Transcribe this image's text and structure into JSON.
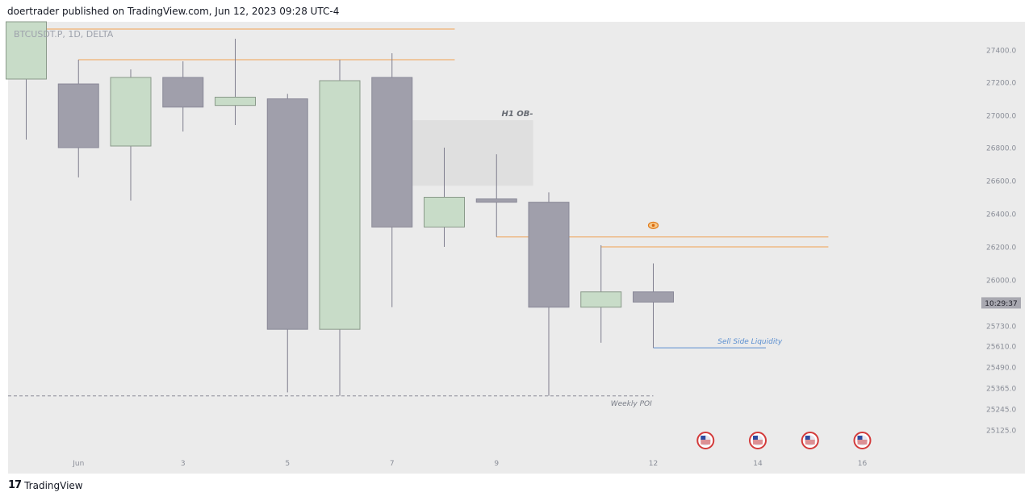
{
  "header": {
    "published_by": "doertrader published on TradingView.com, Jun 12, 2023 09:28 UTC-4"
  },
  "footer": {
    "brand": "TradingView",
    "logo_icon": "tradingview-logo-icon"
  },
  "chart_data": {
    "type": "candlestick",
    "title": "BTCUSDT.P, 1D, DELTA",
    "ylim": [
      25000,
      27700
    ],
    "x_tick_labels": [
      "Jun",
      "3",
      "5",
      "7",
      "9",
      "12",
      "14",
      "16"
    ],
    "y_tick_labels": [
      "27400.0",
      "27200.0",
      "27000.0",
      "26800.0",
      "26600.0",
      "26400.0",
      "26200.0",
      "26000.0",
      "25730.0",
      "25610.0",
      "25490.0",
      "25365.0",
      "25245.0",
      "25125.0"
    ],
    "y_ticks": [
      27400,
      27200,
      27000,
      26800,
      26600,
      26400,
      26200,
      26000,
      25730,
      25610,
      25490,
      25365,
      25245,
      25125
    ],
    "colors": {
      "plot_background": "#ebebeb",
      "up_fill": "#c8dcc8",
      "down_fill": "#a09fab",
      "wick": "#7f7e8e",
      "candle_border": "#7a7a7a",
      "resistance_line": "#f0a050",
      "sell_line": "#5b8fd0",
      "poi_line": "#8a8a96",
      "ob_zone": "#dedede",
      "current_price_badge": "#a8a8b0"
    },
    "candles": [
      {
        "date": "May 31",
        "open": 27220,
        "high": 27700,
        "low": 26850,
        "close": 27620
      },
      {
        "date": "Jun 1",
        "open": 27190,
        "high": 27340,
        "low": 26620,
        "close": 26800
      },
      {
        "date": "Jun 2",
        "open": 26810,
        "high": 27280,
        "low": 26480,
        "close": 27230
      },
      {
        "date": "Jun 3",
        "open": 27230,
        "high": 27330,
        "low": 26900,
        "close": 27050
      },
      {
        "date": "Jun 4",
        "open": 27060,
        "high": 27470,
        "low": 26940,
        "close": 27110
      },
      {
        "date": "Jun 5",
        "open": 27100,
        "high": 27130,
        "low": 25340,
        "close": 25710
      },
      {
        "date": "Jun 6",
        "open": 25710,
        "high": 27340,
        "low": 25320,
        "close": 27210
      },
      {
        "date": "Jun 7",
        "open": 27230,
        "high": 27380,
        "low": 25840,
        "close": 26320
      },
      {
        "date": "Jun 8",
        "open": 26320,
        "high": 26800,
        "low": 26200,
        "close": 26500
      },
      {
        "date": "Jun 9",
        "open": 26490,
        "high": 26760,
        "low": 26260,
        "close": 26470
      },
      {
        "date": "Jun 10",
        "open": 26470,
        "high": 26530,
        "low": 25320,
        "close": 25840
      },
      {
        "date": "Jun 11",
        "open": 25840,
        "high": 26210,
        "low": 25630,
        "close": 25930
      },
      {
        "date": "Jun 12",
        "open": 25930,
        "high": 26100,
        "low": 25600,
        "close": 25870
      }
    ],
    "current_time_label": "10:29:37",
    "current_price": 25870,
    "annotations": {
      "h1_ob_label": "H1 OB-",
      "h1_ob_zone": {
        "from_date": "Jun 7",
        "to_date": "Jun 10",
        "top": 26970,
        "bottom": 26570
      },
      "sell_side_liquidity_label": "Sell Side Liquidity",
      "sell_side_liquidity_price": 25600,
      "weekly_poi_label": "Weekly POI",
      "weekly_poi_price": 25320,
      "resistance_levels": [
        27530,
        27340,
        26260,
        26200
      ],
      "eye_icon": "eye-icon",
      "flag_icon": "us-flag-icon",
      "event_dates": [
        "Jun 13",
        "Jun 14",
        "Jun 15",
        "Jun 16"
      ]
    }
  }
}
